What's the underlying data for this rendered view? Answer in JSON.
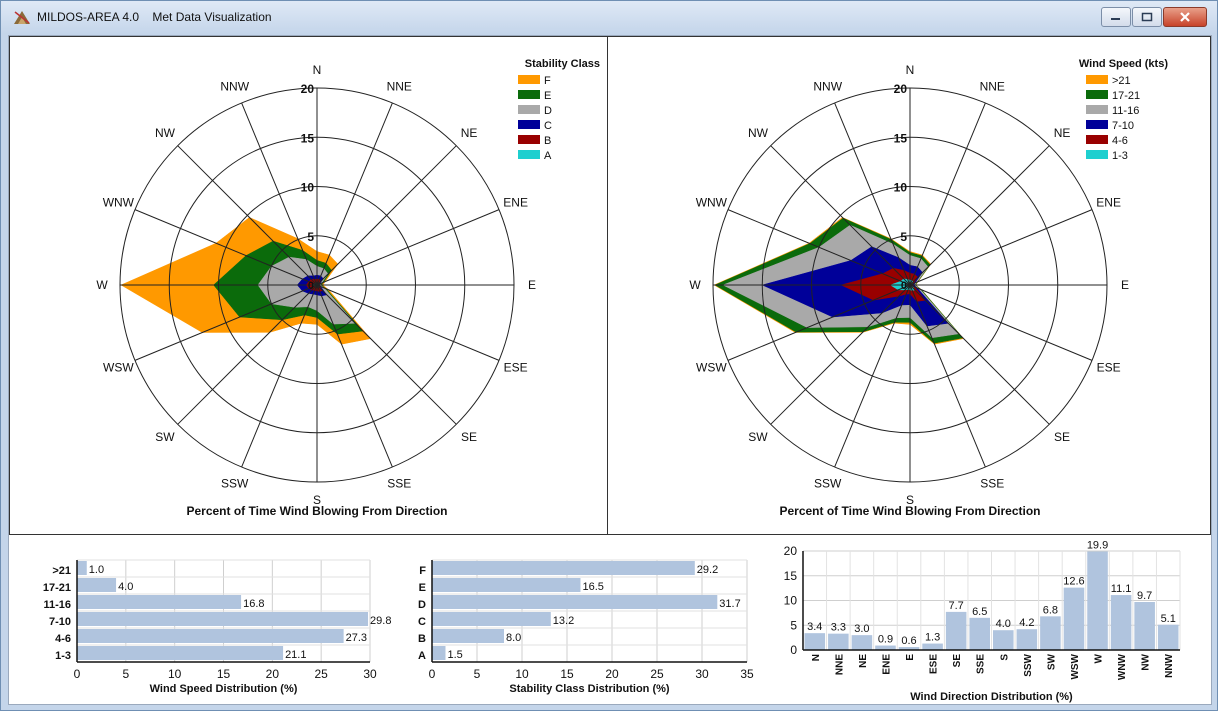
{
  "window": {
    "title_app": "MILDOS-AREA 4.0",
    "title_view": "Met Data Visualization",
    "buttons": [
      "minimize-icon",
      "maximize-icon",
      "close-icon"
    ]
  },
  "directions": [
    "N",
    "NNE",
    "NE",
    "ENE",
    "E",
    "ESE",
    "SE",
    "SSE",
    "S",
    "SSW",
    "SW",
    "WSW",
    "W",
    "WNW",
    "NW",
    "NNW"
  ],
  "rings": [
    "5",
    "10",
    "15",
    "20"
  ],
  "stability_rose": {
    "title": "Percent of Time Wind Blowing From Direction",
    "legend_title": "Stability Class",
    "legend": [
      {
        "label": "F",
        "color": "#ff9900"
      },
      {
        "label": "E",
        "color": "#0b6b0b"
      },
      {
        "label": "D",
        "color": "#a9a9a9"
      },
      {
        "label": "C",
        "color": "#000099"
      },
      {
        "label": "B",
        "color": "#990000"
      },
      {
        "label": "A",
        "color": "#1ecfcf"
      }
    ],
    "max": 20,
    "series": [
      {
        "name": "F",
        "color": "#ff9900",
        "values": [
          3.4,
          3.3,
          3.0,
          0.9,
          0.6,
          1.3,
          7.7,
          6.5,
          4.0,
          4.2,
          6.8,
          12.6,
          19.9,
          11.1,
          9.7,
          5.1
        ]
      },
      {
        "name": "E",
        "color": "#0b6b0b",
        "values": [
          2.5,
          2.4,
          2.1,
          0.7,
          0.45,
          1.0,
          6.6,
          5.4,
          3.3,
          3.3,
          5.0,
          8.5,
          10.5,
          7.8,
          6.3,
          3.8
        ]
      },
      {
        "name": "D",
        "color": "#a9a9a9",
        "values": [
          1.9,
          1.8,
          1.6,
          0.5,
          0.35,
          0.8,
          5.5,
          4.3,
          2.6,
          2.4,
          3.2,
          5.0,
          6.0,
          5.0,
          4.0,
          2.8
        ]
      },
      {
        "name": "C",
        "color": "#000099",
        "values": [
          1.0,
          1.0,
          0.9,
          0.3,
          0.2,
          0.4,
          1.4,
          1.2,
          1.0,
          1.0,
          1.2,
          1.6,
          2.0,
          1.6,
          1.3,
          1.0
        ]
      },
      {
        "name": "B",
        "color": "#990000",
        "values": [
          0.6,
          0.6,
          0.5,
          0.2,
          0.15,
          0.25,
          0.8,
          0.7,
          0.6,
          0.6,
          0.7,
          0.9,
          1.1,
          0.9,
          0.8,
          0.6
        ]
      },
      {
        "name": "A",
        "color": "#1ecfcf",
        "values": [
          0.2,
          0.2,
          0.15,
          0.08,
          0.05,
          0.1,
          0.25,
          0.2,
          0.2,
          0.2,
          0.2,
          0.3,
          0.4,
          0.3,
          0.25,
          0.2
        ]
      }
    ]
  },
  "speed_rose": {
    "title": "Percent of Time Wind Blowing From Direction",
    "legend_title": "Wind Speed (kts)",
    "legend": [
      {
        "label": ">21",
        "color": "#ff9900"
      },
      {
        "label": "17-21",
        "color": "#0b6b0b"
      },
      {
        "label": "11-16",
        "color": "#a9a9a9"
      },
      {
        "label": "7-10",
        "color": "#000099"
      },
      {
        "label": "4-6",
        "color": "#990000"
      },
      {
        "label": "1-3",
        "color": "#1ecfcf"
      }
    ],
    "max": 20,
    "series": [
      {
        "name": ">21",
        "color": "#ff9900",
        "values": [
          3.4,
          3.3,
          3.0,
          0.9,
          0.6,
          1.3,
          7.7,
          6.5,
          4.0,
          4.2,
          6.8,
          12.6,
          19.9,
          11.1,
          9.7,
          5.1
        ]
      },
      {
        "name": "17-21",
        "color": "#0b6b0b",
        "values": [
          3.3,
          3.2,
          2.9,
          0.85,
          0.55,
          1.25,
          7.6,
          6.4,
          3.8,
          4.1,
          6.7,
          12.5,
          19.8,
          11.0,
          9.6,
          5.0
        ]
      },
      {
        "name": "11-16",
        "color": "#a9a9a9",
        "values": [
          3.0,
          2.9,
          2.6,
          0.75,
          0.5,
          1.1,
          7.0,
          5.8,
          3.3,
          3.6,
          6.0,
          11.3,
          19.0,
          10.0,
          8.6,
          4.5
        ]
      },
      {
        "name": "7-10",
        "color": "#000099",
        "values": [
          2.0,
          2.0,
          1.8,
          0.55,
          0.4,
          0.8,
          5.5,
          4.5,
          2.0,
          2.2,
          4.0,
          8.5,
          15.0,
          6.5,
          5.5,
          3.0
        ]
      },
      {
        "name": "4-6",
        "color": "#990000",
        "values": [
          1.2,
          1.2,
          1.1,
          0.35,
          0.25,
          0.5,
          2.2,
          1.8,
          0.9,
          1.0,
          1.6,
          4.0,
          7.0,
          3.0,
          2.4,
          1.6
        ]
      },
      {
        "name": "1-3",
        "color": "#1ecfcf",
        "values": [
          0.5,
          0.5,
          0.45,
          0.2,
          0.15,
          0.25,
          0.7,
          0.6,
          0.5,
          0.5,
          0.7,
          1.3,
          2.0,
          1.0,
          0.9,
          0.6
        ]
      }
    ]
  },
  "chart_data": [
    {
      "type": "bar",
      "orientation": "horizontal",
      "xlabel": "Wind Speed Distribution (%)",
      "categories": [
        ">21",
        "17-21",
        "11-16",
        "7-10",
        "4-6",
        "1-3"
      ],
      "values": [
        1.0,
        4.0,
        16.8,
        29.8,
        27.3,
        21.1
      ],
      "value_labels": [
        "1.0",
        "4.0",
        "16.8",
        "29.8",
        "27.3",
        "21.1"
      ],
      "xlim": [
        0,
        30
      ],
      "ticks": [
        "0",
        "5",
        "10",
        "15",
        "20",
        "25",
        "30"
      ],
      "grid": true,
      "bar_color": "#b0c4de"
    },
    {
      "type": "bar",
      "orientation": "horizontal",
      "xlabel": "Stability Class Distribution (%)",
      "categories": [
        "F",
        "E",
        "D",
        "C",
        "B",
        "A"
      ],
      "values": [
        29.2,
        16.5,
        31.7,
        13.2,
        8.0,
        1.5
      ],
      "value_labels": [
        "29.2",
        "16.5",
        "31.7",
        "13.2",
        "8.0",
        "1.5"
      ],
      "xlim": [
        0,
        35
      ],
      "ticks": [
        "0",
        "5",
        "10",
        "15",
        "20",
        "25",
        "30",
        "35"
      ],
      "grid": true,
      "bar_color": "#b0c4de"
    },
    {
      "type": "bar",
      "orientation": "vertical",
      "xlabel": "Wind Direction Distribution (%)",
      "categories": [
        "N",
        "NNE",
        "NE",
        "ENE",
        "E",
        "ESE",
        "SE",
        "SSE",
        "S",
        "SSW",
        "SW",
        "WSW",
        "W",
        "WNW",
        "NW",
        "NNW"
      ],
      "values": [
        3.4,
        3.3,
        3.0,
        0.9,
        0.6,
        1.3,
        7.7,
        6.5,
        4.0,
        4.2,
        6.8,
        12.6,
        19.9,
        11.1,
        9.7,
        5.1
      ],
      "value_labels": [
        "3.4",
        "3.3",
        "3.0",
        "0.9",
        "0.6",
        "1.3",
        "7.7",
        "6.5",
        "4.0",
        "4.2",
        "6.8",
        "12.6",
        "19.9",
        "11.1",
        "9.7",
        "5.1"
      ],
      "ylim": [
        0,
        20
      ],
      "ticks": [
        "0",
        "5",
        "10",
        "15",
        "20"
      ],
      "grid": true,
      "bar_color": "#b0c4de"
    }
  ]
}
